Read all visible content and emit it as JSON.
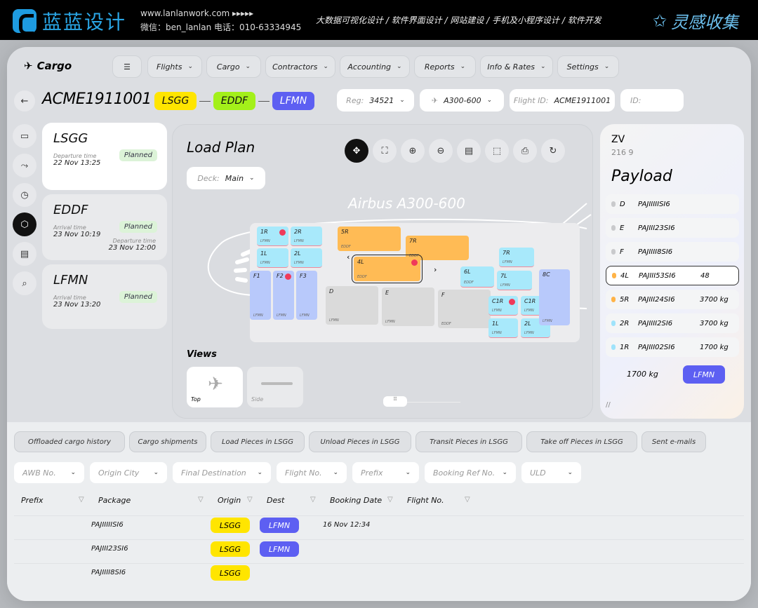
{
  "banner": {
    "brand": "蓝蓝设计",
    "site": "www.lanlanwork.com ▸▸▸▸▸",
    "contact": "微信：ben_lanlan    电话：010-63334945",
    "services": "大数据可视化设计  /  软件界面设计  /  网站建设  /  手机及小程序设计  /  软件开发",
    "right": "灵感收集"
  },
  "app": {
    "logo": "Cargo"
  },
  "nav": [
    {
      "label": "Flights"
    },
    {
      "label": "Cargo"
    },
    {
      "label": "Contractors"
    },
    {
      "label": "Accounting"
    },
    {
      "label": "Reports"
    },
    {
      "label": "Info & Rates"
    },
    {
      "label": "Settings"
    }
  ],
  "title": "ACME1911001",
  "route": [
    {
      "code": "LSGG",
      "color": "#ffe500",
      "text": "#111"
    },
    {
      "code": "EDDF",
      "color": "#a3f01a",
      "text": "#111"
    },
    {
      "code": "LFMN",
      "color": "#5d5ff2",
      "text": "#fff"
    }
  ],
  "selectors": {
    "reg_label": "Reg:",
    "reg_value": "34521",
    "aircraft": "A300-600",
    "flight_label": "Flight ID:",
    "flight_value": "ACME1911001",
    "id_label": "ID:"
  },
  "stops": [
    {
      "code": "LSGG",
      "status": "Planned",
      "times": [
        {
          "label": "Departure time",
          "value": "22 Nov 13:25"
        }
      ]
    },
    {
      "code": "EDDF",
      "status": "Planned",
      "times": [
        {
          "label": "Arrival time",
          "value": "23 Nov 10:19"
        },
        {
          "label": "Departure time",
          "value": "23 Nov 12:00"
        }
      ]
    },
    {
      "code": "LFMN",
      "status": "Planned",
      "times": [
        {
          "label": "Arrival time",
          "value": "23 Nov 13:20"
        }
      ]
    }
  ],
  "rail_icons": [
    "id-card-icon",
    "route-icon",
    "clock-icon",
    "box-icon",
    "document-icon",
    "package-search-icon"
  ],
  "load_plan": {
    "title": "Load Plan",
    "deck_label": "Deck:",
    "deck_value": "Main",
    "aircraft_label": "Airbus A300-600"
  },
  "toolbar": [
    {
      "icon": "move-icon",
      "glyph": "✥"
    },
    {
      "icon": "fit-icon",
      "glyph": "⛶"
    },
    {
      "icon": "zoom-in-icon",
      "glyph": "⊕"
    },
    {
      "icon": "zoom-out-icon",
      "glyph": "⊖"
    },
    {
      "icon": "manifest-icon",
      "glyph": "▤"
    },
    {
      "icon": "select-area-icon",
      "glyph": "⬚"
    },
    {
      "icon": "print-icon",
      "glyph": "⎙"
    },
    {
      "icon": "refresh-icon",
      "glyph": "↻"
    }
  ],
  "positions": [
    {
      "code": "1R",
      "dest": "LFMN",
      "type": "cyan",
      "alert": true
    },
    {
      "code": "2R",
      "dest": "LFMN",
      "type": "cyan"
    },
    {
      "code": "1L",
      "dest": "LFMN",
      "type": "cyan"
    },
    {
      "code": "2L",
      "dest": "LFMN",
      "type": "cyan"
    },
    {
      "code": "F1",
      "dest": "LFMN",
      "type": "lilac"
    },
    {
      "code": "F2",
      "dest": "LFMN",
      "type": "lilac",
      "alert": true
    },
    {
      "code": "F3",
      "dest": "LFMN",
      "type": "lilac"
    },
    {
      "code": "5R",
      "dest": "EDDF",
      "type": "orange"
    },
    {
      "code": "7R",
      "dest": "EDDF",
      "type": "orange"
    },
    {
      "code": "4L",
      "dest": "EDDF",
      "type": "orange",
      "alert": true,
      "selected": true
    },
    {
      "code": "D",
      "dest": "LFMN",
      "type": "gray"
    },
    {
      "code": "E",
      "dest": "LFMN",
      "type": "gray"
    },
    {
      "code": "F",
      "dest": "EDDF",
      "type": "gray"
    },
    {
      "code": "6L",
      "dest": "EDDF",
      "type": "cyan"
    },
    {
      "code": "7R",
      "dest": "LFMN",
      "type": "cyan"
    },
    {
      "code": "7L",
      "dest": "LFMN",
      "type": "cyan"
    },
    {
      "code": "C1R",
      "dest": "LFMN",
      "type": "cyan",
      "alert": true
    },
    {
      "code": "C1R",
      "dest": "LFMN",
      "type": "cyan"
    },
    {
      "code": "1L",
      "dest": "LFMN",
      "type": "cyan"
    },
    {
      "code": "2L",
      "dest": "LFMN",
      "type": "cyan"
    },
    {
      "code": "8C",
      "dest": "LFMN",
      "type": "lilac"
    }
  ],
  "views": {
    "title": "Views",
    "items": [
      "Top",
      "Side"
    ]
  },
  "payload": {
    "header_code": "ZV",
    "header_sub": "216 9",
    "title": "Payload",
    "rows": [
      {
        "pos": "D",
        "package": "PAJIIIIISI6",
        "weight": "",
        "dot": "#c9cacc"
      },
      {
        "pos": "E",
        "package": "PAJIII23SI6",
        "weight": "",
        "dot": "#c9cacc"
      },
      {
        "pos": "F",
        "package": "PAJIIII8SI6",
        "weight": "",
        "dot": "#c9cacc"
      },
      {
        "pos": "4L",
        "package": "PAJIII53SI6",
        "weight": "48",
        "dot": "#ffb347",
        "selected": true
      },
      {
        "pos": "5R",
        "package": "PAJIII24SI6",
        "weight": "3700 kg",
        "dot": "#ffb347"
      },
      {
        "pos": "2R",
        "package": "PAJIIII2SI6",
        "weight": "3700 kg",
        "dot": "#9fe3fb"
      },
      {
        "pos": "1R",
        "package": "PAJIII02SI6",
        "weight": "1700 kg",
        "dot": "#9fe3fb"
      }
    ],
    "extra_weight": "1700 kg",
    "dest_badge": "LFMN"
  },
  "tabs": [
    "Offloaded cargo history",
    "Cargo shipments",
    "Load Pieces in LSGG",
    "Unload Pieces in LSGG",
    "Transit Pieces in LSGG",
    "Take off Pieces in LSGG",
    "Sent e-mails"
  ],
  "filters": [
    "AWB No.",
    "Origin City",
    "Final Destination",
    "Flight No.",
    "Prefix",
    "Booking Ref No.",
    "ULD"
  ],
  "table": {
    "columns": [
      "Prefix",
      "Package",
      "Origin",
      "Dest",
      "Booking Date",
      "Flight No."
    ],
    "rows": [
      {
        "package": "PAJIIIIISI6",
        "origin": "LSGG",
        "dest": "LFMN",
        "date": "16 Nov 12:34"
      },
      {
        "package": "PAJIII23SI6",
        "origin": "LSGG",
        "dest": "LFMN",
        "date": ""
      },
      {
        "package": "PAJIIII8SI6",
        "origin": "LSGG",
        "dest": "",
        "date": ""
      }
    ]
  }
}
